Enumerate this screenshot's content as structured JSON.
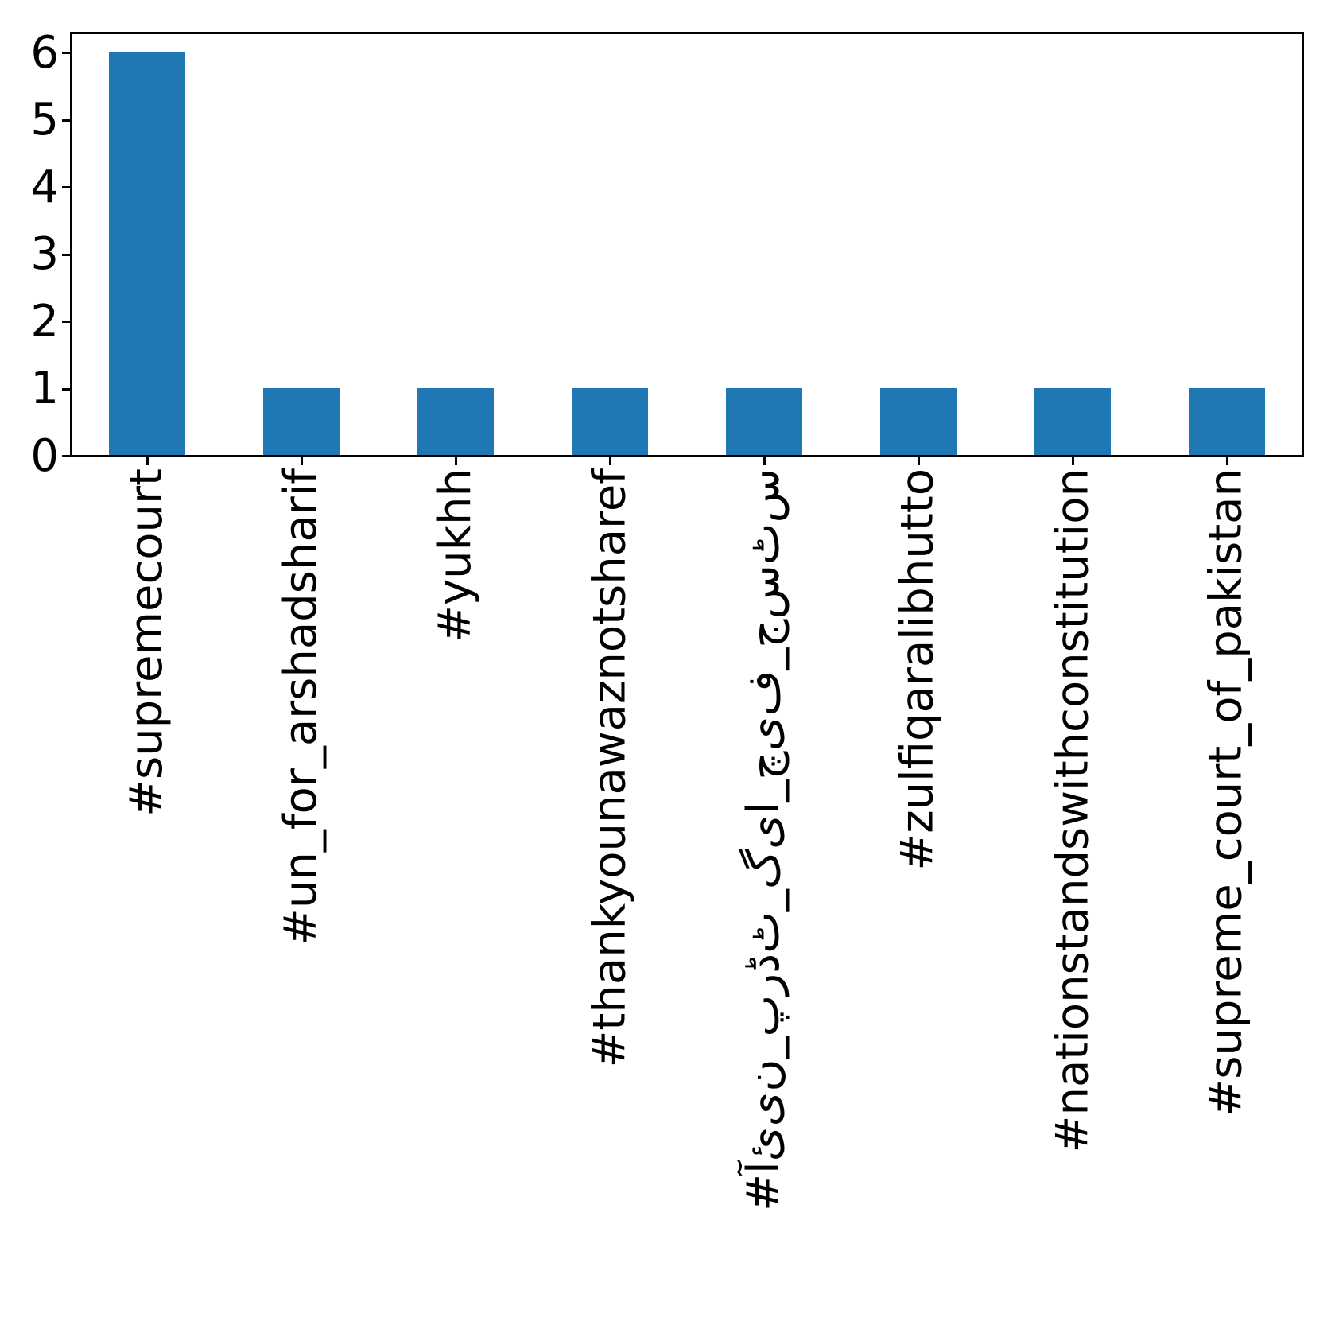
{
  "chart_data": {
    "type": "bar",
    "title": "",
    "xlabel": "",
    "ylabel": "",
    "categories": [
      "#supremecourt",
      "#un_for_arshadsharif",
      "#yukhh",
      "#thankyounawaznotsharef",
      "#آئین_پرڈٹ_گیا_چیف_جسٹس",
      "#zulfiqaralibhutto",
      "#nationstandswithconstitution",
      "#supreme_court_of_pakistan"
    ],
    "values": [
      6,
      1,
      1,
      1,
      1,
      1,
      1,
      1
    ],
    "yticks": [
      0,
      1,
      2,
      3,
      4,
      5,
      6
    ],
    "ylim": [
      0,
      6
    ],
    "bar_color": "#1f77b4",
    "axis_color": "#000000",
    "background_color": "#ffffff",
    "grid": false,
    "legend": "none",
    "xtick_rotation": 90
  }
}
